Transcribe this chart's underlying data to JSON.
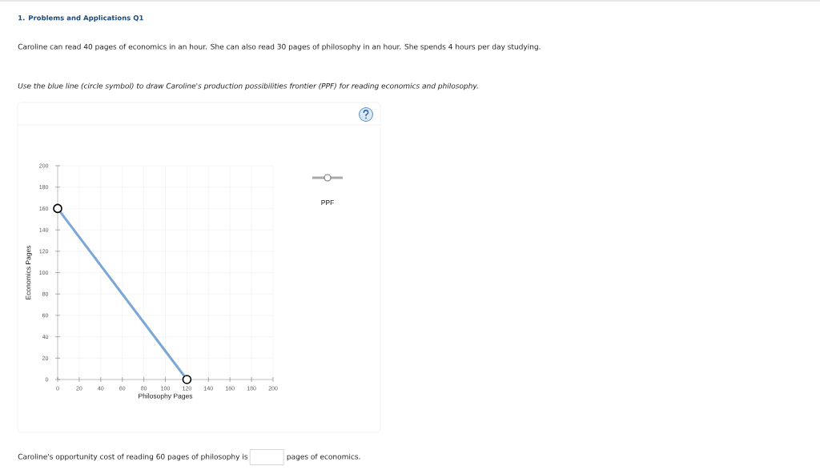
{
  "chart_data": {
    "type": "line",
    "title": "1. Problems and Applications Q1",
    "subtitle": "Caroline can read 40 pages of economics in an hour. She can also read 30 pages of philosophy in an hour. She spends 4 hours per day studying.",
    "annotations": [
      "Use the blue line (circle symbol) to draw Caroline's production possibilities frontier (PPF) for reading economics and philosophy.",
      "Caroline's opportunity cost of reading 60 pages of philosophy is",
      "pages of economics."
    ],
    "xlabel": "Philosophy Pages",
    "ylabel": "Economics Pages",
    "x": [
      0,
      120
    ],
    "series": [
      {
        "name": "PPF",
        "color": "#7ba7d6",
        "values": [
          160,
          0
        ]
      }
    ],
    "xlim": [
      0,
      200
    ],
    "ylim": [
      0,
      200
    ],
    "xticks": [
      0,
      20,
      40,
      60,
      80,
      100,
      120,
      140,
      160,
      180,
      200
    ],
    "yticks": [
      0,
      20,
      40,
      60,
      80,
      100,
      120,
      140,
      160,
      180,
      200
    ],
    "grid": true,
    "legend": "right",
    "marker": "circle",
    "line_style": "solid"
  }
}
